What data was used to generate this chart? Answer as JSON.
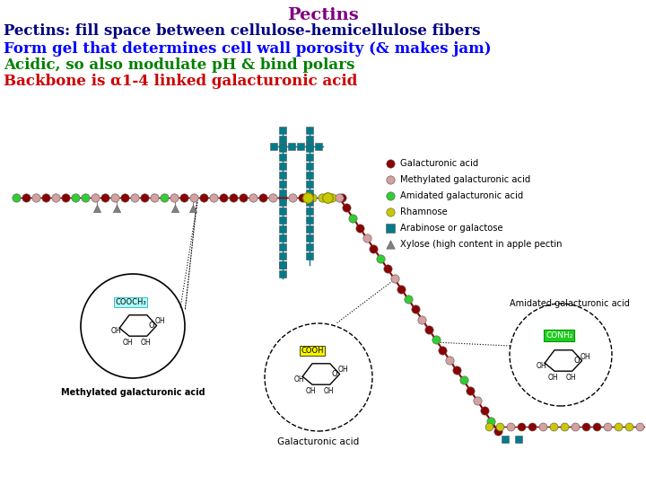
{
  "title": "Pectins",
  "title_color": "#800080",
  "title_fontsize": 14,
  "lines": [
    {
      "text": "Pectins: fill space between cellulose-hemicellulose fibers",
      "color": "#000080",
      "fontsize": 12,
      "bold": true
    },
    {
      "text": "Form gel that determines cell wall porosity (& makes jam)",
      "color": "#0000FF",
      "fontsize": 12,
      "bold": true
    },
    {
      "text": "Acidic, so also modulate pH & bind polars",
      "color": "#008000",
      "fontsize": 12,
      "bold": true
    },
    {
      "text": "Backbone is α1-4 linked galacturonic acid",
      "color": "#CC0000",
      "fontsize": 12,
      "bold": true
    }
  ],
  "legend_items": [
    {
      "label": "Galacturonic acid",
      "color": "#8B0000",
      "marker": "o"
    },
    {
      "label": "Methylated galacturonic acid",
      "color": "#D4A0A0",
      "marker": "o"
    },
    {
      "label": "Amidated galacturonic acid",
      "color": "#32CD32",
      "marker": "o"
    },
    {
      "label": "Rhamnose",
      "color": "#C8C800",
      "marker": "o"
    },
    {
      "label": "Arabinose or galactose",
      "color": "#007B8B",
      "marker": "s"
    },
    {
      "label": "Xylose (high content in apple pectin",
      "color": "#808080",
      "marker": "^"
    }
  ],
  "bg_color": "#FFFFFF",
  "galact": "#8B0000",
  "methyl": "#D4A0A0",
  "amidad": "#32CD32",
  "rhamn": "#C8C800",
  "arabin": "#007B8B",
  "xylose": "#808080"
}
